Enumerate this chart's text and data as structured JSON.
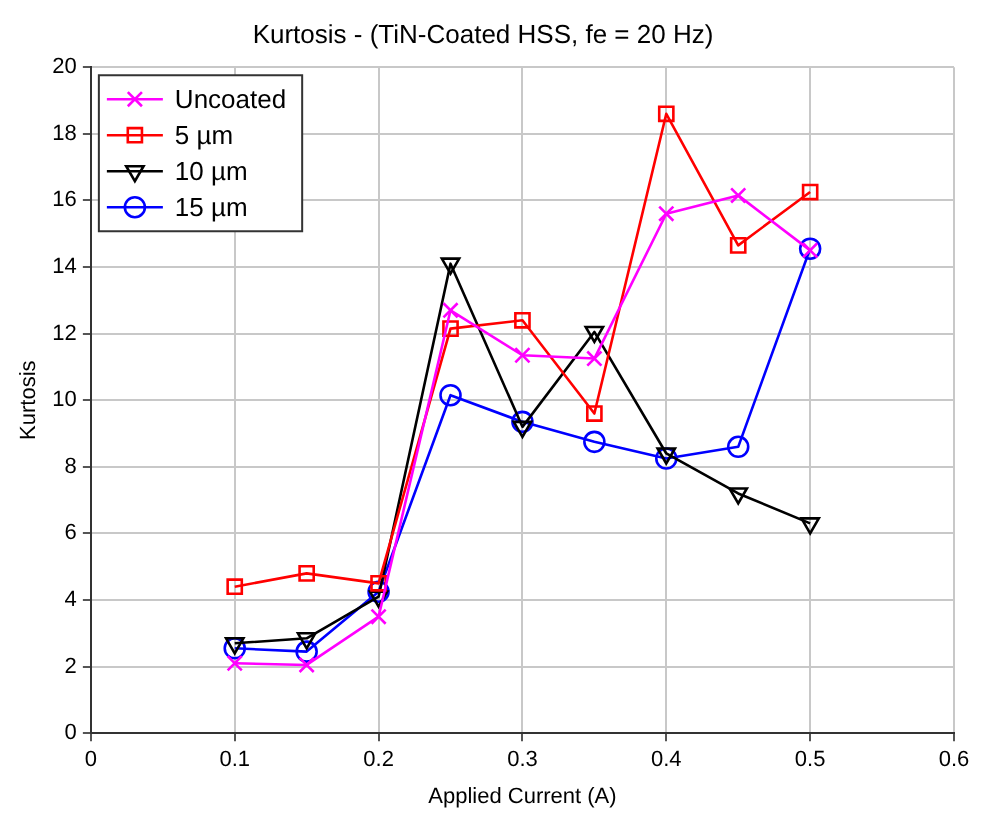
{
  "chart_data": {
    "type": "line",
    "title": "Kurtosis - (TiN-Coated HSS, fe = 20 Hz)",
    "xlabel": "Applied Current (A)",
    "ylabel": "Kurtosis",
    "x": [
      0.1,
      0.15,
      0.2,
      0.25,
      0.3,
      0.35,
      0.4,
      0.45,
      0.5
    ],
    "series": [
      {
        "name": "Uncoated",
        "color": "#ff00ff",
        "marker": "cross",
        "values": [
          2.1,
          2.05,
          3.5,
          12.7,
          11.35,
          11.25,
          15.6,
          16.15,
          14.5
        ]
      },
      {
        "name": "5 µm",
        "color": "#ff0000",
        "marker": "square",
        "values": [
          4.4,
          4.8,
          4.5,
          12.15,
          12.4,
          9.6,
          18.6,
          14.65,
          16.25
        ]
      },
      {
        "name": "10 µm",
        "color": "#000000",
        "marker": "triangle",
        "values": [
          2.7,
          2.85,
          4.1,
          14.1,
          9.2,
          12.05,
          8.4,
          7.2,
          6.3
        ]
      },
      {
        "name": "15 µm",
        "color": "#0000ff",
        "marker": "circle",
        "values": [
          2.55,
          2.45,
          4.25,
          10.15,
          9.35,
          8.75,
          8.25,
          8.6,
          14.55
        ]
      }
    ],
    "xlim": [
      0,
      0.6
    ],
    "xticks": [
      0,
      0.1,
      0.2,
      0.3,
      0.4,
      0.5,
      0.6
    ],
    "ylim": [
      0,
      20
    ],
    "yticks": [
      0,
      2,
      4,
      6,
      8,
      10,
      12,
      14,
      16,
      18,
      20
    ],
    "grid": true,
    "legend": "top left",
    "line_style": "solid"
  }
}
